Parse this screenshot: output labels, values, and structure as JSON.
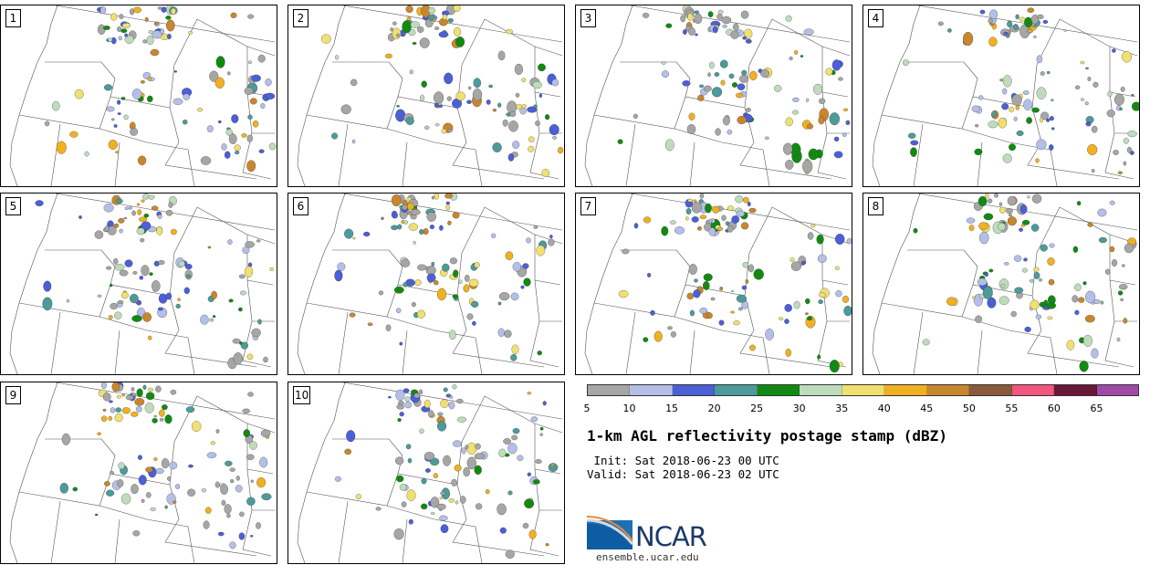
{
  "panels": [
    {
      "label": "1"
    },
    {
      "label": "2"
    },
    {
      "label": "3"
    },
    {
      "label": "4"
    },
    {
      "label": "5"
    },
    {
      "label": "6"
    },
    {
      "label": "7"
    },
    {
      "label": "8"
    },
    {
      "label": "9"
    },
    {
      "label": "10"
    }
  ],
  "colorbar": {
    "colors": [
      "#a6a6a6",
      "#b4bfe8",
      "#4b5fd6",
      "#4d9a9a",
      "#128a12",
      "#bedcbc",
      "#f0e070",
      "#f0b020",
      "#c8862e",
      "#8b5a3c",
      "#f0567e",
      "#6a1838",
      "#a04aa8"
    ],
    "ticks": [
      "5",
      "10",
      "15",
      "20",
      "25",
      "30",
      "35",
      "40",
      "45",
      "50",
      "55",
      "60",
      "65"
    ]
  },
  "title": "1-km AGL reflectivity postage stamp (dBZ)",
  "init_line": " Init: Sat 2018-06-23 00 UTC",
  "valid_line": "Valid: Sat 2018-06-23 02 UTC",
  "logo": {
    "text": "NCAR",
    "url": "ensemble.ucar.edu"
  }
}
